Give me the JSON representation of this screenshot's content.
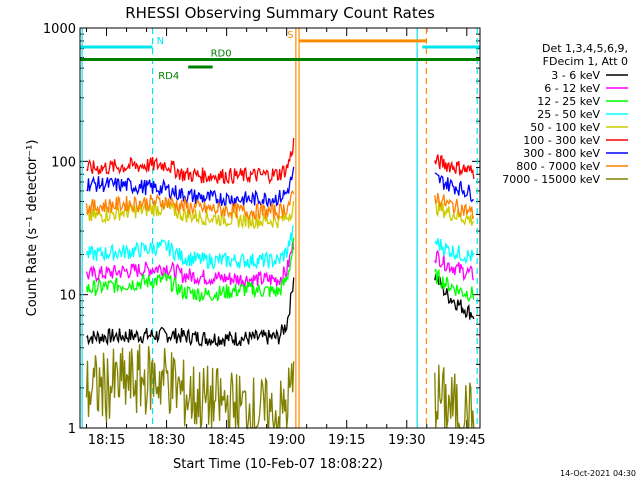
{
  "chart_data": {
    "type": "line",
    "title": "RHESSI Observing Summary Count Rates",
    "xlabel": "Start Time (10-Feb-07 18:08:22)",
    "ylabel": "Count Rate (s⁻¹ detector⁻¹)",
    "x_unit": "minutes since 18:00",
    "xlim": [
      8.37,
      108.3
    ],
    "ylim": [
      1,
      1000
    ],
    "yscale": "log",
    "x_ticks": [
      {
        "label": "18:15",
        "value": 15
      },
      {
        "label": "18:30",
        "value": 30
      },
      {
        "label": "18:45",
        "value": 45
      },
      {
        "label": "19:00",
        "value": 60
      },
      {
        "label": "19:15",
        "value": 75
      },
      {
        "label": "19:30",
        "value": 90
      },
      {
        "label": "19:45",
        "value": 105
      }
    ],
    "y_ticks": [
      {
        "label": "1",
        "value": 1
      },
      {
        "label": "10",
        "value": 10
      },
      {
        "label": "100",
        "value": 100
      },
      {
        "label": "1000",
        "value": 1000
      }
    ],
    "legend_header": [
      "Det 1,3,4,5,6,9,",
      "FDecim 1, Att 0"
    ],
    "legend_position": "right",
    "timestamp": "14-Oct-2021 04:30",
    "flags": [
      {
        "label": "N",
        "color": "#00e5ee",
        "segments": [
          [
            8.4,
            26.5
          ],
          [
            93.9,
            108.3
          ]
        ],
        "level": 720
      },
      {
        "label": "S",
        "color": "#ff8c00",
        "segments": [
          [
            63.1,
            94.9
          ]
        ],
        "level": 800
      },
      {
        "label": "RD4",
        "color": "#008000",
        "segments": [
          [
            35.4,
            41.5
          ]
        ],
        "level": 510
      },
      {
        "label": "RD0",
        "color": "#008000",
        "segments": [
          [
            8.4,
            108.3
          ]
        ],
        "level": 580
      }
    ],
    "vertical_markers": [
      {
        "x": 8.9,
        "color": "#00e5ee",
        "style": "solid"
      },
      {
        "x": 26.5,
        "color": "#00e5ee",
        "style": "dashed"
      },
      {
        "x": 62.3,
        "color": "#ff8c00",
        "style": "solid"
      },
      {
        "x": 63.1,
        "color": "#ff8c00",
        "style": "solid"
      },
      {
        "x": 92.6,
        "color": "#00e5ee",
        "style": "solid"
      },
      {
        "x": 94.9,
        "color": "#ff8c00",
        "style": "dashed"
      },
      {
        "x": 107.6,
        "color": "#00e5ee",
        "style": "dashed"
      }
    ],
    "series": [
      {
        "name": "3 - 6 keV",
        "color": "#000000",
        "x": [
          10,
          20,
          30,
          34,
          40,
          50,
          58,
          60,
          61,
          62,
          97,
          100,
          104,
          107
        ],
        "y": [
          4.8,
          4.9,
          5,
          4.9,
          4.7,
          4.7,
          4.8,
          6,
          9,
          16,
          14,
          10,
          8,
          7
        ]
      },
      {
        "name": "6 - 12 keV",
        "color": "#ff00ff",
        "x": [
          10,
          20,
          30,
          34,
          40,
          50,
          58,
          60,
          61,
          62,
          97,
          100,
          104,
          107
        ],
        "y": [
          14,
          15,
          16,
          14,
          13.5,
          13,
          13,
          15,
          20,
          26,
          20,
          17,
          15,
          14
        ]
      },
      {
        "name": "12 - 25 keV",
        "color": "#00ff00",
        "x": [
          10,
          20,
          30,
          34,
          40,
          50,
          58,
          60,
          61,
          62,
          97,
          100,
          104,
          107
        ],
        "y": [
          11,
          12,
          13,
          10.5,
          10,
          11,
          10.5,
          13,
          18,
          26,
          14,
          12,
          10.5,
          10
        ]
      },
      {
        "name": "25 - 50 keV",
        "color": "#00ffff",
        "x": [
          10,
          20,
          30,
          34,
          40,
          50,
          58,
          60,
          61,
          62,
          97,
          100,
          104,
          107
        ],
        "y": [
          20,
          21,
          23,
          19,
          18,
          18,
          18,
          21,
          26,
          32,
          25,
          22,
          20,
          19
        ]
      },
      {
        "name": "50 - 100 keV",
        "color": "#cccc00",
        "x": [
          10,
          20,
          30,
          34,
          40,
          50,
          58,
          60,
          61,
          62,
          97,
          100,
          104,
          107
        ],
        "y": [
          38,
          42,
          45,
          40,
          38,
          36,
          36,
          38,
          42,
          48,
          46,
          42,
          38,
          36
        ]
      },
      {
        "name": "100 - 300 keV",
        "color": "#ff0000",
        "x": [
          10,
          20,
          30,
          34,
          40,
          50,
          58,
          60,
          61,
          62,
          97,
          100,
          104,
          107
        ],
        "y": [
          88,
          92,
          95,
          80,
          78,
          78,
          80,
          88,
          110,
          150,
          100,
          95,
          88,
          82
        ]
      },
      {
        "name": "300 - 800 keV",
        "color": "#0000ff",
        "x": [
          10,
          20,
          30,
          34,
          40,
          50,
          58,
          60,
          61,
          62,
          97,
          100,
          104,
          107
        ],
        "y": [
          68,
          66,
          62,
          56,
          53,
          52,
          53,
          58,
          70,
          90,
          75,
          68,
          62,
          56
        ]
      },
      {
        "name": "800 - 7000 keV",
        "color": "#ff8000",
        "x": [
          10,
          20,
          30,
          34,
          40,
          50,
          58,
          60,
          61,
          62,
          97,
          100,
          104,
          107
        ],
        "y": [
          45,
          48,
          50,
          46,
          44,
          42,
          42,
          45,
          50,
          58,
          55,
          48,
          44,
          40
        ]
      },
      {
        "name": "7000 - 15000 keV",
        "color": "#808000",
        "x": [
          10,
          20,
          30,
          34,
          40,
          50,
          58,
          60,
          61,
          62,
          97,
          100,
          104,
          107
        ],
        "y": [
          1.9,
          2.2,
          2.4,
          1.8,
          1.6,
          1.4,
          1.2,
          1.5,
          1.9,
          2.3,
          1.8,
          1.5,
          1.3,
          1.2
        ]
      }
    ]
  }
}
